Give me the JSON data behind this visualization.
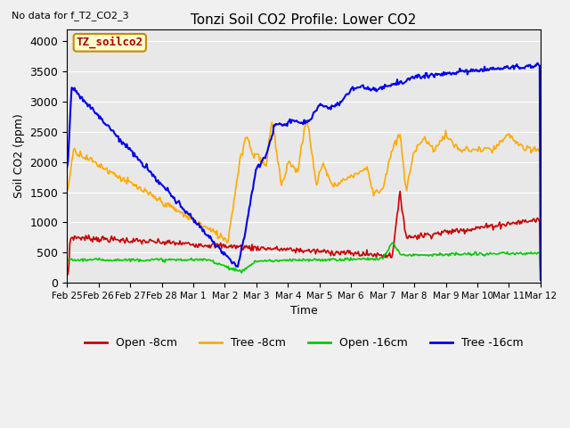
{
  "title": "Tonzi Soil CO2 Profile: Lower CO2",
  "top_left_note": "No data for f_T2_CO2_3",
  "ylabel": "Soil CO2 (ppm)",
  "xlabel": "Time",
  "ylim": [
    0,
    4200
  ],
  "yticks": [
    0,
    500,
    1000,
    1500,
    2000,
    2500,
    3000,
    3500,
    4000
  ],
  "xtick_labels": [
    "Feb 25",
    "Feb 26",
    "Feb 27",
    "Feb 28",
    "Mar 1",
    "Mar 2",
    "Mar 3",
    "Mar 4",
    "Mar 5",
    "Mar 6",
    "Mar 7",
    "Mar 8",
    "Mar 9",
    "Mar 10",
    "Mar 11",
    "Mar 12"
  ],
  "legend_label": "TZ_soilco2",
  "legend_facecolor": "#ffffcc",
  "legend_edgecolor": "#cc8800",
  "legend_text_color": "#aa0000",
  "bg_color": "#e8e8e8",
  "fig_bg_color": "#f0f0f0",
  "series": {
    "open_8cm": {
      "color": "#cc0000",
      "label": "Open -8cm"
    },
    "tree_8cm": {
      "color": "#ffaa00",
      "label": "Tree -8cm"
    },
    "open_16cm": {
      "color": "#00cc00",
      "label": "Open -16cm"
    },
    "tree_16cm": {
      "color": "#0000ee",
      "label": "Tree -16cm"
    }
  }
}
